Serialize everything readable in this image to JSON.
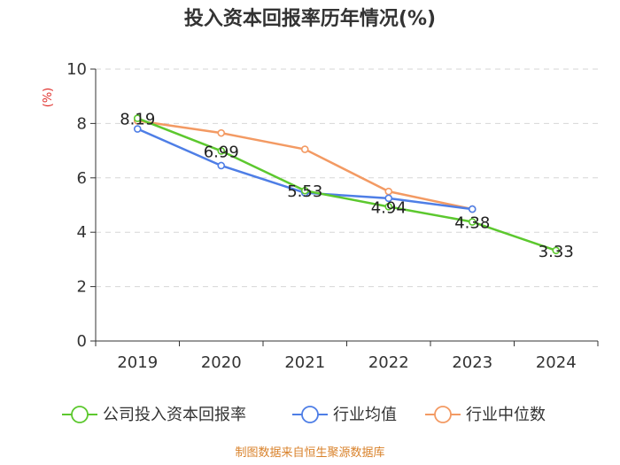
{
  "chart_data": {
    "type": "line",
    "title": "投入资本回报率历年情况(%)",
    "ylabel": "(%)",
    "xlabel": "",
    "ylim": [
      0,
      10
    ],
    "yticks": [
      0,
      2,
      4,
      6,
      8,
      10
    ],
    "categories": [
      "2019",
      "2020",
      "2021",
      "2022",
      "2023",
      "2024"
    ],
    "grid": true,
    "legend_position": "bottom",
    "series": [
      {
        "name": "公司投入资本回报率",
        "color": "#5cc82e",
        "values": [
          8.19,
          6.99,
          5.53,
          4.94,
          4.38,
          3.33
        ],
        "labels": [
          "8.19",
          "6.99",
          "5.53",
          "4.94",
          "4.38",
          "3.33"
        ]
      },
      {
        "name": "行业均值",
        "color": "#4e7ee6",
        "values": [
          7.8,
          6.45,
          5.45,
          5.25,
          4.85,
          null
        ]
      },
      {
        "name": "行业中位数",
        "color": "#f39a63",
        "values": [
          8.1,
          7.65,
          7.05,
          5.5,
          4.85,
          null
        ]
      }
    ],
    "source": "制图数据来自恒生聚源数据库"
  }
}
